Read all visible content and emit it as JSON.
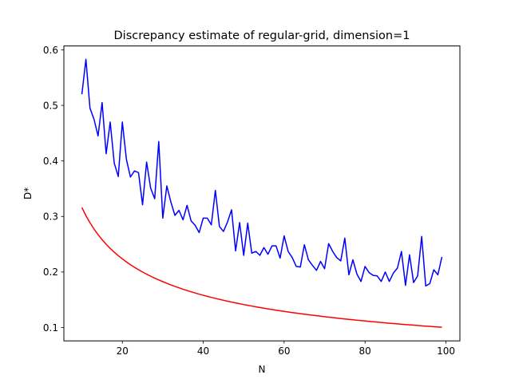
{
  "chart_data": {
    "type": "line",
    "title": "Discrepancy estimate of regular-grid, dimension=1",
    "xlabel": "N",
    "ylabel": "D*",
    "xlim": [
      5.55,
      103.45
    ],
    "ylim": [
      0.076,
      0.607
    ],
    "xticks": [
      20,
      40,
      60,
      80,
      100
    ],
    "yticks": [
      0.1,
      0.2,
      0.3,
      0.4,
      0.5,
      0.6
    ],
    "xtick_labels": [
      "20",
      "40",
      "60",
      "80",
      "100"
    ],
    "ytick_labels": [
      "0.1",
      "0.2",
      "0.3",
      "0.4",
      "0.5",
      "0.6"
    ],
    "grid": false,
    "legend": "none",
    "series": [
      {
        "color": "#0000ff",
        "x": [
          10,
          11,
          12,
          13,
          14,
          15,
          16,
          17,
          18,
          19,
          20,
          21,
          22,
          23,
          24,
          25,
          26,
          27,
          28,
          29,
          30,
          31,
          32,
          33,
          34,
          35,
          36,
          37,
          38,
          39,
          40,
          41,
          42,
          43,
          44,
          45,
          46,
          47,
          48,
          49,
          50,
          51,
          52,
          53,
          54,
          55,
          56,
          57,
          58,
          59,
          60,
          61,
          62,
          63,
          64,
          65,
          66,
          67,
          68,
          69,
          70,
          71,
          72,
          73,
          74,
          75,
          76,
          77,
          78,
          79,
          80,
          81,
          82,
          83,
          84,
          85,
          86,
          87,
          88,
          89,
          90,
          91,
          92,
          93,
          94,
          95,
          96,
          97,
          98,
          99
        ],
        "y": [
          0.52,
          0.583,
          0.495,
          0.475,
          0.445,
          0.505,
          0.413,
          0.47,
          0.396,
          0.372,
          0.47,
          0.403,
          0.371,
          0.382,
          0.379,
          0.321,
          0.398,
          0.351,
          0.332,
          0.435,
          0.297,
          0.355,
          0.326,
          0.302,
          0.311,
          0.294,
          0.32,
          0.292,
          0.284,
          0.271,
          0.297,
          0.297,
          0.285,
          0.347,
          0.282,
          0.273,
          0.29,
          0.312,
          0.238,
          0.289,
          0.23,
          0.288,
          0.234,
          0.237,
          0.23,
          0.244,
          0.232,
          0.247,
          0.247,
          0.225,
          0.265,
          0.237,
          0.226,
          0.21,
          0.209,
          0.249,
          0.222,
          0.212,
          0.203,
          0.219,
          0.206,
          0.251,
          0.237,
          0.226,
          0.22,
          0.261,
          0.195,
          0.222,
          0.196,
          0.183,
          0.21,
          0.199,
          0.194,
          0.193,
          0.183,
          0.2,
          0.183,
          0.198,
          0.207,
          0.237,
          0.176,
          0.231,
          0.181,
          0.193,
          0.264,
          0.175,
          0.179,
          0.204,
          0.195,
          0.227
        ]
      },
      {
        "color": "#ff0000",
        "x": [
          10,
          11,
          12,
          13,
          14,
          15,
          16,
          17,
          18,
          19,
          20,
          21,
          22,
          23,
          24,
          25,
          26,
          27,
          28,
          29,
          30,
          31,
          32,
          33,
          34,
          35,
          36,
          37,
          38,
          39,
          40,
          41,
          42,
          43,
          44,
          45,
          46,
          47,
          48,
          49,
          50,
          51,
          52,
          53,
          54,
          55,
          56,
          57,
          58,
          59,
          60,
          61,
          62,
          63,
          64,
          65,
          66,
          67,
          68,
          69,
          70,
          71,
          72,
          73,
          74,
          75,
          76,
          77,
          78,
          79,
          80,
          81,
          82,
          83,
          84,
          85,
          86,
          87,
          88,
          89,
          90,
          91,
          92,
          93,
          94,
          95,
          96,
          97,
          98,
          99
        ],
        "y": [
          0.3162,
          0.3015,
          0.2887,
          0.2774,
          0.2673,
          0.2582,
          0.25,
          0.2425,
          0.2357,
          0.2294,
          0.2236,
          0.2182,
          0.2132,
          0.2085,
          0.2041,
          0.2,
          0.1961,
          0.1925,
          0.189,
          0.1857,
          0.1826,
          0.1796,
          0.1768,
          0.1741,
          0.1715,
          0.169,
          0.1667,
          0.1644,
          0.1622,
          0.1601,
          0.1581,
          0.1562,
          0.1543,
          0.1525,
          0.1508,
          0.1491,
          0.1474,
          0.1459,
          0.1443,
          0.1429,
          0.1414,
          0.14,
          0.1387,
          0.1374,
          0.1361,
          0.1348,
          0.1336,
          0.1325,
          0.1313,
          0.1302,
          0.1291,
          0.128,
          0.127,
          0.126,
          0.125,
          0.124,
          0.1231,
          0.1222,
          0.1213,
          0.1204,
          0.1195,
          0.1187,
          0.1179,
          0.117,
          0.1162,
          0.1155,
          0.1147,
          0.114,
          0.1132,
          0.1125,
          0.1118,
          0.1111,
          0.1104,
          0.1098,
          0.1091,
          0.1085,
          0.1078,
          0.1072,
          0.1066,
          0.106,
          0.1054,
          0.1048,
          0.1043,
          0.1037,
          0.1031,
          0.1026,
          0.1021,
          0.1015,
          0.101,
          0.1005
        ]
      }
    ]
  }
}
